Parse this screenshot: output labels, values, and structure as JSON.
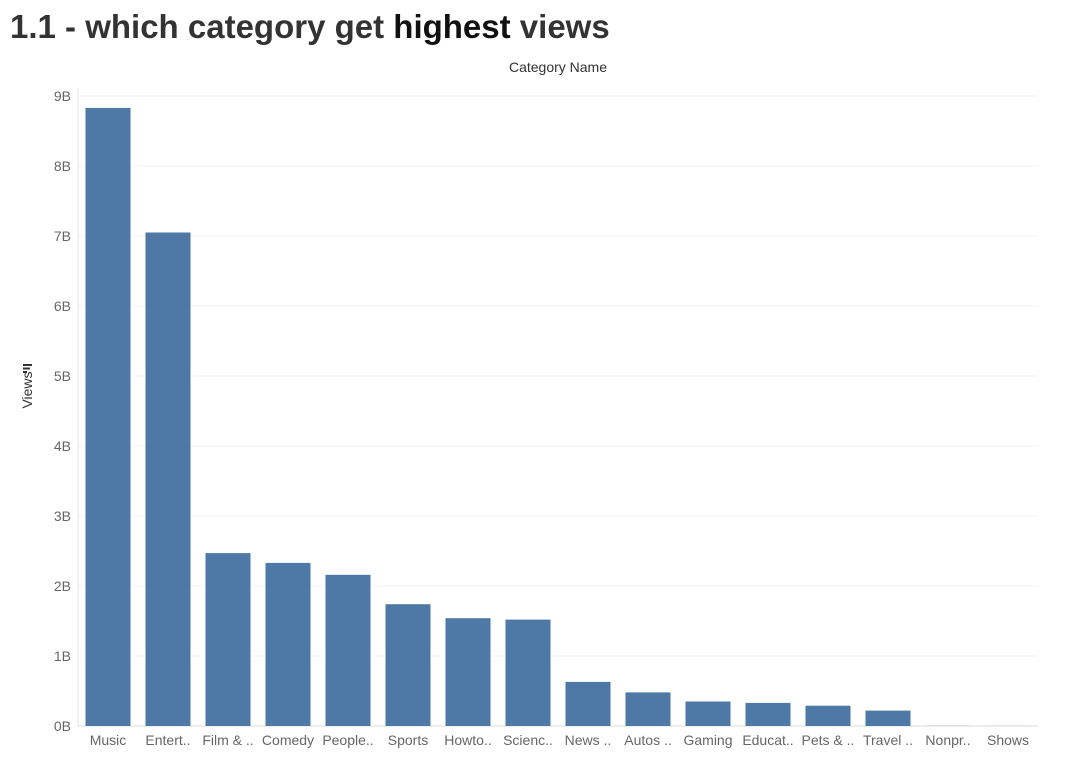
{
  "title": {
    "part1": "1.1 - which category get ",
    "part2": "highest",
    "part3": "  views"
  },
  "chart_data": {
    "type": "bar",
    "title": "1.1 - which category get highest  views",
    "xlabel": "Category Name",
    "ylabel": "Views",
    "categories": [
      "Music",
      "Entert..",
      "Film & ..",
      "Comedy",
      "People..",
      "Sports",
      "Howto..",
      "Scienc..",
      "News ..",
      "Autos ..",
      "Gaming",
      "Educat..",
      "Pets & ..",
      "Travel ..",
      "Nonpr..",
      "Shows"
    ],
    "values": [
      8.83,
      7.05,
      2.47,
      2.33,
      2.16,
      1.74,
      1.54,
      1.52,
      0.63,
      0.48,
      0.35,
      0.33,
      0.29,
      0.22,
      0.002,
      0.001
    ],
    "unit": "B",
    "ylim": [
      0,
      9
    ],
    "yticks": [
      "0B",
      "1B",
      "2B",
      "3B",
      "4B",
      "5B",
      "6B",
      "7B",
      "8B",
      "9B"
    ],
    "grid": true,
    "bar_color": "#4e79a7",
    "sort_indicator": "descending"
  }
}
